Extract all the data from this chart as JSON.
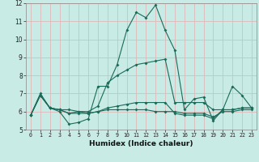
{
  "xlabel": "Humidex (Indice chaleur)",
  "xlim": [
    -0.5,
    23.5
  ],
  "ylim": [
    5,
    12
  ],
  "yticks": [
    5,
    6,
    7,
    8,
    9,
    10,
    11,
    12
  ],
  "xticks": [
    0,
    1,
    2,
    3,
    4,
    5,
    6,
    7,
    8,
    9,
    10,
    11,
    12,
    13,
    14,
    15,
    16,
    17,
    18,
    19,
    20,
    21,
    22,
    23
  ],
  "background_color": "#c8ebe5",
  "grid_color": "#e0b8b8",
  "line_color": "#1a6b5a",
  "curves": [
    {
      "x": [
        0,
        1,
        2,
        3,
        4,
        5,
        6,
        7,
        8,
        9,
        10,
        11,
        12,
        13,
        14,
        15,
        16,
        17,
        18,
        19,
        20,
        21,
        22,
        23
      ],
      "y": [
        5.8,
        7.0,
        6.2,
        6.0,
        5.3,
        5.4,
        5.6,
        7.4,
        7.4,
        8.6,
        10.5,
        11.5,
        11.2,
        11.9,
        10.5,
        9.4,
        6.1,
        6.7,
        6.8,
        5.5,
        6.1,
        7.4,
        6.9,
        6.2
      ]
    },
    {
      "x": [
        0,
        1,
        2,
        3,
        4,
        5,
        6,
        7,
        8,
        9,
        10,
        11,
        12,
        13,
        14,
        15,
        16,
        17,
        18,
        19,
        20,
        21,
        22,
        23
      ],
      "y": [
        5.8,
        6.9,
        6.2,
        6.1,
        6.1,
        6.0,
        6.0,
        6.3,
        7.6,
        8.0,
        8.3,
        8.6,
        8.7,
        8.8,
        8.9,
        6.5,
        6.5,
        6.5,
        6.5,
        6.1,
        6.1,
        6.1,
        6.2,
        6.2
      ]
    },
    {
      "x": [
        0,
        1,
        2,
        3,
        4,
        5,
        6,
        7,
        8,
        9,
        10,
        11,
        12,
        13,
        14,
        15,
        16,
        17,
        18,
        19,
        20,
        21,
        22,
        23
      ],
      "y": [
        5.8,
        6.9,
        6.2,
        6.1,
        5.9,
        6.0,
        5.9,
        6.0,
        6.2,
        6.3,
        6.4,
        6.5,
        6.5,
        6.5,
        6.5,
        5.9,
        5.8,
        5.8,
        5.8,
        5.6,
        6.1,
        6.1,
        6.2,
        6.2
      ]
    },
    {
      "x": [
        0,
        1,
        2,
        3,
        4,
        5,
        6,
        7,
        8,
        9,
        10,
        11,
        12,
        13,
        14,
        15,
        16,
        17,
        18,
        19,
        20,
        21,
        22,
        23
      ],
      "y": [
        5.8,
        6.9,
        6.2,
        6.1,
        5.9,
        5.9,
        5.9,
        6.0,
        6.1,
        6.1,
        6.1,
        6.1,
        6.1,
        6.0,
        6.0,
        6.0,
        5.9,
        5.9,
        5.9,
        5.7,
        6.0,
        6.0,
        6.1,
        6.1
      ]
    }
  ]
}
